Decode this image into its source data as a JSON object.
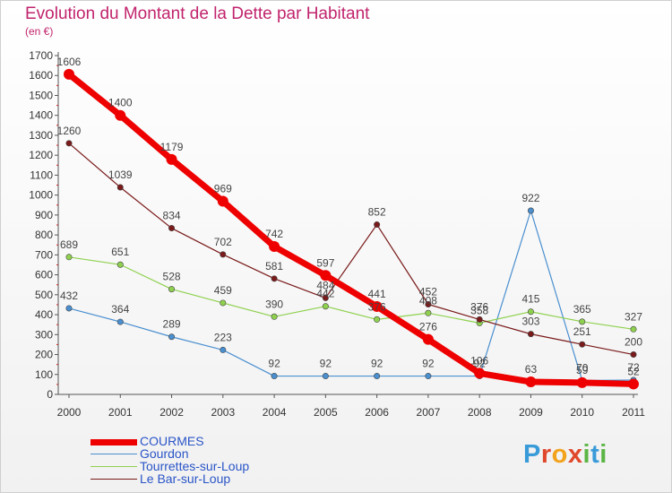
{
  "title": "Evolution du Montant de la Dette par Habitant",
  "subtitle": "(en €)",
  "logo": {
    "letters": [
      "P",
      "r",
      "o",
      "x",
      "i",
      "t",
      "i"
    ],
    "colors": [
      "#3a9bd9",
      "#e0482b",
      "#f3a21b",
      "#e0482b",
      "#5bb544",
      "#3a9bd9",
      "#5bb544"
    ]
  },
  "chart_data": {
    "type": "line",
    "x": [
      "2000",
      "2001",
      "2002",
      "2003",
      "2004",
      "2005",
      "2006",
      "2007",
      "2008",
      "2009",
      "2010",
      "2011"
    ],
    "ylim": [
      0,
      1700
    ],
    "yticks": [
      0,
      100,
      200,
      300,
      400,
      500,
      600,
      700,
      800,
      900,
      1000,
      1100,
      1200,
      1300,
      1400,
      1500,
      1600,
      1700
    ],
    "grid": false,
    "legend_position": "bottom-left",
    "series": [
      {
        "name": "Gourdon",
        "color": "#4a8fcf",
        "values": [
          432,
          364,
          289,
          223,
          92,
          92,
          92,
          92,
          92,
          922,
          70,
          72
        ],
        "labels": [
          "432",
          "364",
          "289",
          "223",
          "92",
          "92",
          "92",
          "92",
          "92",
          "922",
          "70",
          "72"
        ]
      },
      {
        "name": "Tourrettes-sur-Loup",
        "color": "#8fd14f",
        "values": [
          689,
          651,
          528,
          459,
          390,
          442,
          376,
          408,
          358,
          415,
          365,
          327
        ],
        "labels": [
          "689",
          "651",
          "528",
          "459",
          "390",
          "442",
          "376",
          "408",
          "358",
          "415",
          "365",
          "327"
        ]
      },
      {
        "name": "Le Bar-sur-Loup",
        "color": "#7a1a1a",
        "values": [
          1260,
          1039,
          834,
          702,
          581,
          484,
          852,
          452,
          376,
          303,
          251,
          200
        ],
        "labels": [
          "1260",
          "1039",
          "834",
          "702",
          "581",
          "484",
          "852",
          "452",
          "376",
          "303",
          "251",
          "200"
        ]
      },
      {
        "name": "COURMES",
        "color": "#ee0000",
        "values": [
          1606,
          1400,
          1179,
          969,
          742,
          597,
          441,
          276,
          106,
          63,
          59,
          52
        ],
        "labels": [
          "1606",
          "1400",
          "1179",
          "969",
          "742",
          "597",
          "441",
          "276",
          "106",
          "63",
          "59",
          "52"
        ]
      }
    ]
  },
  "legend": [
    "COURMES",
    "Gourdon",
    "Tourrettes-sur-Loup",
    "Le Bar-sur-Loup"
  ]
}
